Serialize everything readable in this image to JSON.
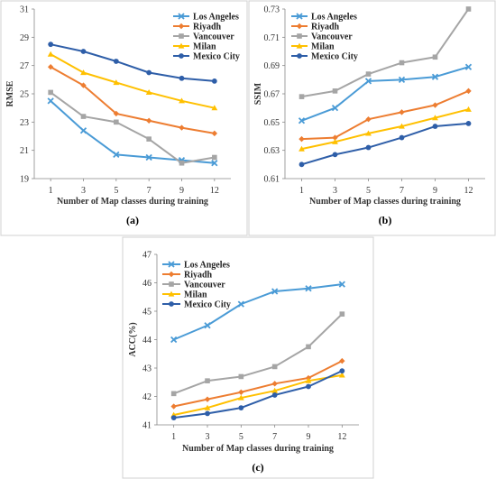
{
  "colors": {
    "Los Angeles": "#4a9bd6",
    "Riyadh": "#ed7d31",
    "Vancouver": "#a5a5a5",
    "Milan": "#ffc000",
    "Mexico City": "#2e5ea8"
  },
  "markers": {
    "Los Angeles": "x",
    "Riyadh": "diamond",
    "Vancouver": "square",
    "Milan": "triangle",
    "Mexico City": "circle"
  },
  "chart_data": [
    {
      "type": "line",
      "panel_label": "(a)",
      "xlabel": "Number of Map classes during training",
      "ylabel": "RMSE",
      "categories": [
        "1",
        "3",
        "5",
        "7",
        "9",
        "12"
      ],
      "ylim": [
        19,
        31
      ],
      "yticks": [
        "19",
        "21",
        "23",
        "25",
        "27",
        "29",
        "31"
      ],
      "legend_position": "top-right",
      "series": [
        {
          "name": "Los Angeles",
          "values": [
            24.5,
            22.4,
            20.7,
            20.5,
            20.3,
            20.1
          ]
        },
        {
          "name": "Riyadh",
          "values": [
            26.9,
            25.6,
            23.6,
            23.1,
            22.6,
            22.2
          ]
        },
        {
          "name": "Vancouver",
          "values": [
            25.1,
            23.4,
            23.0,
            21.8,
            20.1,
            20.5
          ]
        },
        {
          "name": "Milan",
          "values": [
            27.8,
            26.5,
            25.8,
            25.1,
            24.5,
            24.0
          ]
        },
        {
          "name": "Mexico City",
          "values": [
            28.5,
            28.0,
            27.3,
            26.5,
            26.1,
            25.9
          ]
        }
      ]
    },
    {
      "type": "line",
      "panel_label": "(b)",
      "xlabel": "Number of Map classes during training",
      "ylabel": "SSIM",
      "categories": [
        "1",
        "3",
        "5",
        "7",
        "9",
        "12"
      ],
      "ylim": [
        0.61,
        0.73
      ],
      "yticks": [
        "0.61",
        "0.63",
        "0.65",
        "0.67",
        "0.69",
        "0.71",
        "0.73"
      ],
      "legend_position": "top-left",
      "series": [
        {
          "name": "Los Angeles",
          "values": [
            0.651,
            0.66,
            0.679,
            0.68,
            0.682,
            0.689
          ]
        },
        {
          "name": "Riyadh",
          "values": [
            0.638,
            0.639,
            0.652,
            0.657,
            0.662,
            0.672
          ]
        },
        {
          "name": "Vancouver",
          "values": [
            0.668,
            0.672,
            0.684,
            0.692,
            0.696,
            0.73
          ]
        },
        {
          "name": "Milan",
          "values": [
            0.631,
            0.636,
            0.642,
            0.647,
            0.653,
            0.659
          ]
        },
        {
          "name": "Mexico City",
          "values": [
            0.62,
            0.627,
            0.632,
            0.639,
            0.647,
            0.649
          ]
        }
      ]
    },
    {
      "type": "line",
      "panel_label": "(c)",
      "xlabel": "Number of Map classes during training",
      "ylabel": "ACC(%)",
      "categories": [
        "1",
        "3",
        "5",
        "7",
        "9",
        "12"
      ],
      "ylim": [
        41,
        47
      ],
      "yticks": [
        "41",
        "42",
        "43",
        "44",
        "45",
        "46",
        "47"
      ],
      "legend_position": "top-left",
      "series": [
        {
          "name": "Los Angeles",
          "values": [
            44.0,
            44.5,
            45.25,
            45.7,
            45.8,
            45.95
          ]
        },
        {
          "name": "Riyadh",
          "values": [
            41.65,
            41.9,
            42.15,
            42.45,
            42.65,
            43.25
          ]
        },
        {
          "name": "Vancouver",
          "values": [
            42.1,
            42.55,
            42.7,
            43.05,
            43.75,
            44.9
          ]
        },
        {
          "name": "Milan",
          "values": [
            41.35,
            41.6,
            41.95,
            42.2,
            42.55,
            42.75
          ]
        },
        {
          "name": "Mexico City",
          "values": [
            41.25,
            41.4,
            41.6,
            42.05,
            42.35,
            42.9
          ]
        }
      ]
    }
  ]
}
